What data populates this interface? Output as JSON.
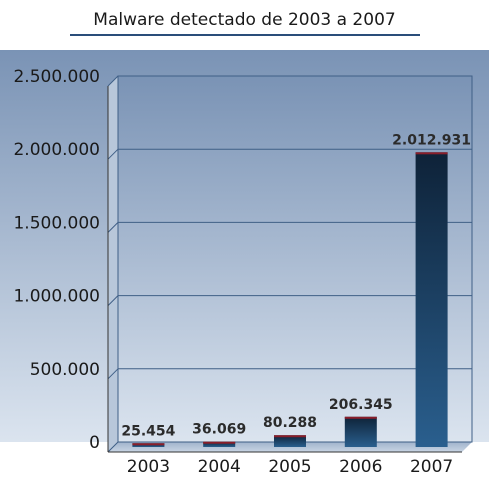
{
  "chart_data": {
    "type": "bar",
    "title": "Malware detectado de 2003 a 2007",
    "categories": [
      "2003",
      "2004",
      "2005",
      "2006",
      "2007"
    ],
    "values": [
      25454,
      36069,
      80288,
      206345,
      2012931
    ],
    "data_labels": [
      "25.454",
      "36.069",
      "80.288",
      "206.345",
      "2.012.931"
    ],
    "ylim": [
      0,
      2500000
    ],
    "yticks": [
      0,
      500000,
      1000000,
      1500000,
      2000000,
      2500000
    ],
    "ytick_labels": [
      "0",
      "500.000",
      "1.000.000",
      "1.500.000",
      "2.000.000",
      "2.500.000"
    ],
    "xlabel": "",
    "ylabel": "",
    "grid": true,
    "colors": {
      "bar_top": "#0e2238",
      "bar_bottom": "#2a5f8e",
      "bar_top_edge": "#8a1e2a",
      "plot_top": "#7a93b5",
      "plot_bottom": "#dbe4ef",
      "grid": "#3f5f86"
    }
  }
}
